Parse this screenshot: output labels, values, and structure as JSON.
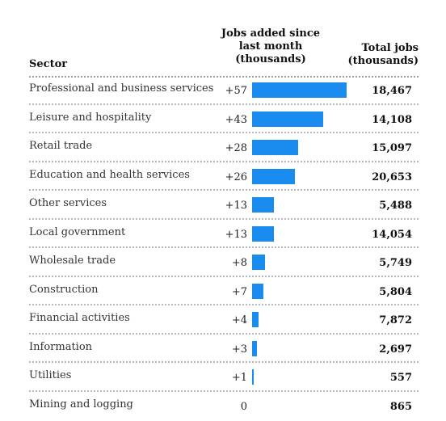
{
  "header": {
    "sector": "Sector",
    "added_line1": "Jobs added since",
    "added_line2": "last month",
    "added_line3": "(thousands)",
    "total_line1": "Total jobs",
    "total_line2": "(thousands)"
  },
  "rows": [
    {
      "sector": "Professional and business services",
      "added_label": "+57",
      "total_label": "18,467"
    },
    {
      "sector": "Leisure and hospitality",
      "added_label": "+43",
      "total_label": "14,108"
    },
    {
      "sector": "Retail trade",
      "added_label": "+28",
      "total_label": "15,097"
    },
    {
      "sector": "Education and health services",
      "added_label": "+26",
      "total_label": "20,653"
    },
    {
      "sector": "Other services",
      "added_label": "+13",
      "total_label": "5,488"
    },
    {
      "sector": "Local government",
      "added_label": "+13",
      "total_label": "14,054"
    },
    {
      "sector": "Wholesale trade",
      "added_label": "+8",
      "total_label": "5,749"
    },
    {
      "sector": "Construction",
      "added_label": "+7",
      "total_label": "5,804"
    },
    {
      "sector": "Financial activities",
      "added_label": "+4",
      "total_label": "7,872"
    },
    {
      "sector": "Information",
      "added_label": "+3",
      "total_label": "2,697"
    },
    {
      "sector": "Utilities",
      "added_label": "+1",
      "total_label": "557"
    },
    {
      "sector": "Mining and logging",
      "added_label": "0",
      "total_label": "865"
    }
  ],
  "chart_data": {
    "type": "bar",
    "orientation": "horizontal",
    "categories": [
      "Professional and business services",
      "Leisure and hospitality",
      "Retail trade",
      "Education and health services",
      "Other services",
      "Local government",
      "Wholesale trade",
      "Construction",
      "Financial activities",
      "Information",
      "Utilities",
      "Mining and logging"
    ],
    "series": [
      {
        "name": "Jobs added since last month (thousands)",
        "values": [
          57,
          43,
          28,
          26,
          13,
          13,
          8,
          7,
          4,
          3,
          1,
          0
        ]
      },
      {
        "name": "Total jobs (thousands)",
        "values": [
          18467,
          14108,
          15097,
          20653,
          5488,
          14054,
          5749,
          5804,
          7872,
          2697,
          557,
          865
        ]
      }
    ],
    "bar_color": "#1a8cf0",
    "xlim": [
      0,
      57
    ]
  }
}
